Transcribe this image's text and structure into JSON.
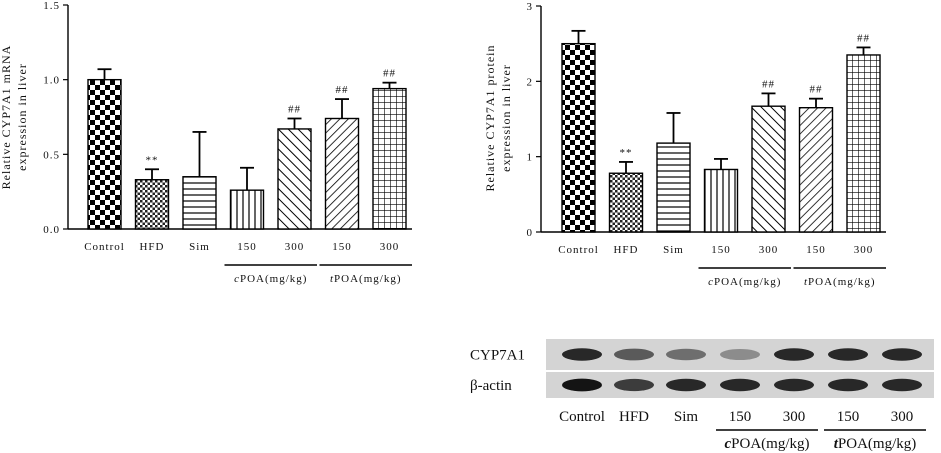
{
  "chart_data": [
    {
      "type": "bar",
      "ylabel_lines": [
        "Relative CYP7A1 mRNA",
        "expression in liver"
      ],
      "categories": [
        "Control",
        "HFD",
        "Sim",
        "150",
        "300",
        "150",
        "300"
      ],
      "values": [
        1.0,
        0.33,
        0.35,
        0.26,
        0.67,
        0.74,
        0.94
      ],
      "errors": [
        0.07,
        0.07,
        0.3,
        0.15,
        0.07,
        0.13,
        0.04
      ],
      "annotations": [
        "",
        "**",
        "",
        "",
        "##",
        "##",
        "##"
      ],
      "ylim": [
        0,
        1.5
      ],
      "yticks": [
        "0.0",
        "0.5",
        "1.0",
        "1.5"
      ],
      "groups": [
        {
          "label_prefix": "c",
          "label_rest": "POA(mg/kg)"
        },
        {
          "label_prefix": "t",
          "label_rest": "POA(mg/kg)"
        }
      ]
    },
    {
      "type": "bar",
      "ylabel_lines": [
        "Relative CYP7A1 protein",
        "expression in liver"
      ],
      "categories": [
        "Control",
        "HFD",
        "Sim",
        "150",
        "300",
        "150",
        "300"
      ],
      "values": [
        2.5,
        0.78,
        1.18,
        0.83,
        1.67,
        1.65,
        2.35
      ],
      "errors": [
        0.17,
        0.15,
        0.4,
        0.14,
        0.17,
        0.12,
        0.1
      ],
      "annotations": [
        "",
        "**",
        "",
        "",
        "##",
        "##",
        "##"
      ],
      "ylim": [
        0,
        3
      ],
      "yticks": [
        "0",
        "1",
        "2",
        "3"
      ],
      "groups": [
        {
          "label_prefix": "c",
          "label_rest": "POA(mg/kg)"
        },
        {
          "label_prefix": "t",
          "label_rest": "POA(mg/kg)"
        }
      ]
    }
  ],
  "blot": {
    "rows": [
      {
        "label": "CYP7A1",
        "intensity": [
          0.85,
          0.6,
          0.5,
          0.35,
          0.85,
          0.85,
          0.85
        ]
      },
      {
        "label": "β-actin",
        "intensity": [
          0.95,
          0.75,
          0.85,
          0.85,
          0.85,
          0.85,
          0.85
        ]
      }
    ],
    "lanes": [
      "Control",
      "HFD",
      "Sim",
      "150",
      "300",
      "150",
      "300"
    ],
    "groups": [
      {
        "label_prefix": "c",
        "label_rest": "POA(mg/kg)"
      },
      {
        "label_prefix": "t",
        "label_rest": "POA(mg/kg)"
      }
    ]
  }
}
